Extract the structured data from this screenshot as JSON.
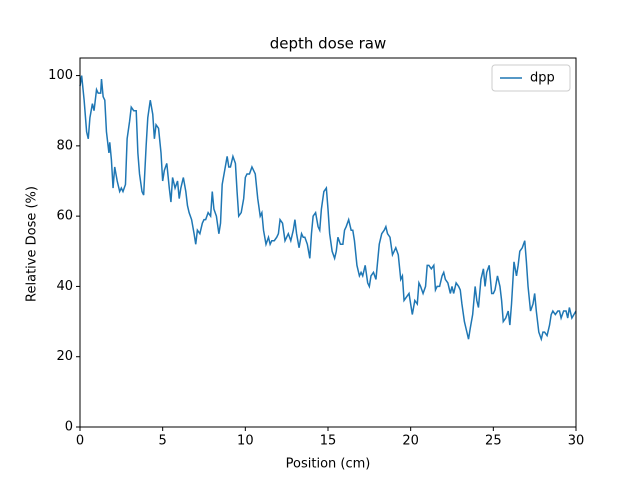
{
  "chart_data": {
    "type": "line",
    "title": "depth dose raw",
    "xlabel": "Position (cm)",
    "ylabel": "Relative Dose (%)",
    "xlim": [
      0,
      30
    ],
    "ylim": [
      0,
      105
    ],
    "xticks": [
      0,
      5,
      10,
      15,
      20,
      25,
      30
    ],
    "yticks": [
      0,
      20,
      40,
      60,
      80,
      100
    ],
    "legend": "upper right",
    "x": [
      0,
      0.1,
      0.25,
      0.4,
      0.5,
      0.6,
      0.75,
      0.85,
      1.0,
      1.1,
      1.25,
      1.3,
      1.4,
      1.5,
      1.6,
      1.75,
      1.8,
      1.9,
      2.0,
      2.1,
      2.25,
      2.4,
      2.5,
      2.6,
      2.75,
      2.85,
      3.0,
      3.1,
      3.25,
      3.4,
      3.5,
      3.6,
      3.75,
      3.85,
      4.0,
      4.1,
      4.25,
      4.4,
      4.5,
      4.6,
      4.75,
      4.9,
      5.0,
      5.1,
      5.25,
      5.4,
      5.5,
      5.6,
      5.75,
      5.9,
      6.0,
      6.1,
      6.25,
      6.4,
      6.5,
      6.6,
      6.75,
      6.9,
      7.0,
      7.1,
      7.25,
      7.4,
      7.5,
      7.6,
      7.75,
      7.9,
      8.0,
      8.1,
      8.25,
      8.4,
      8.5,
      8.6,
      8.75,
      8.9,
      9.0,
      9.1,
      9.25,
      9.4,
      9.5,
      9.6,
      9.75,
      9.9,
      10.0,
      10.1,
      10.25,
      10.4,
      10.5,
      10.6,
      10.75,
      10.9,
      11.0,
      11.1,
      11.25,
      11.4,
      11.5,
      11.6,
      11.75,
      11.9,
      12.0,
      12.1,
      12.25,
      12.4,
      12.5,
      12.6,
      12.75,
      12.9,
      13.0,
      13.1,
      13.25,
      13.4,
      13.5,
      13.6,
      13.75,
      13.9,
      14.0,
      14.1,
      14.25,
      14.4,
      14.5,
      14.6,
      14.75,
      14.9,
      15.0,
      15.1,
      15.25,
      15.4,
      15.5,
      15.6,
      15.75,
      15.9,
      16.0,
      16.1,
      16.25,
      16.4,
      16.5,
      16.6,
      16.75,
      16.9,
      17.0,
      17.1,
      17.25,
      17.4,
      17.5,
      17.6,
      17.75,
      17.9,
      18.0,
      18.1,
      18.25,
      18.4,
      18.5,
      18.6,
      18.75,
      18.9,
      19.0,
      19.1,
      19.25,
      19.4,
      19.5,
      19.6,
      19.75,
      19.9,
      20.0,
      20.1,
      20.25,
      20.4,
      20.5,
      20.6,
      20.75,
      20.9,
      21.0,
      21.1,
      21.25,
      21.4,
      21.5,
      21.6,
      21.75,
      21.9,
      22.0,
      22.1,
      22.25,
      22.4,
      22.5,
      22.6,
      22.75,
      22.9,
      23.0,
      23.1,
      23.25,
      23.4,
      23.5,
      23.6,
      23.75,
      23.9,
      24.0,
      24.1,
      24.25,
      24.4,
      24.5,
      24.6,
      24.75,
      24.9,
      25.0,
      25.1,
      25.25,
      25.4,
      25.5,
      25.6,
      25.75,
      25.9,
      26.0,
      26.1,
      26.25,
      26.4,
      26.5,
      26.6,
      26.75,
      26.9,
      27.0,
      27.1,
      27.25,
      27.4,
      27.5,
      27.6,
      27.75,
      27.9,
      28.0,
      28.1,
      28.25,
      28.4,
      28.5,
      28.6,
      28.75,
      28.9,
      29.0,
      29.1,
      29.25,
      29.4,
      29.5,
      29.6,
      29.75,
      30.0
    ],
    "series": [
      {
        "name": "dpp",
        "color": "#1f77b4",
        "values": [
          97,
          100,
          93,
          84,
          82,
          88,
          92,
          90,
          96,
          95,
          95,
          99,
          94,
          93,
          84,
          78,
          81,
          76,
          68,
          74,
          70,
          67,
          68,
          67,
          69,
          82,
          87,
          91,
          90,
          90,
          78,
          72,
          67,
          66,
          80,
          88,
          93,
          89,
          82,
          86,
          85,
          78,
          70,
          73,
          75,
          68,
          64,
          71,
          68,
          70,
          65,
          68,
          71,
          67,
          63,
          61,
          59,
          55,
          52,
          56,
          55,
          58,
          59,
          59,
          61,
          60,
          67,
          62,
          60,
          55,
          58,
          69,
          73,
          77,
          74,
          74,
          77,
          75,
          67,
          60,
          61,
          65,
          71,
          72,
          72,
          74,
          73,
          72,
          65,
          60,
          61,
          56,
          52,
          54,
          52,
          53,
          53,
          54,
          55,
          59,
          58,
          53,
          54,
          55,
          53,
          56,
          59,
          55,
          51,
          55,
          54,
          54,
          52,
          48,
          55,
          60,
          61,
          57,
          56,
          62,
          67,
          68,
          62,
          55,
          50,
          48,
          50,
          54,
          52,
          52,
          56,
          57,
          59,
          56,
          56,
          53,
          46,
          43,
          44,
          43,
          46,
          41,
          40,
          43,
          44,
          42,
          47,
          52,
          55,
          56,
          57,
          55,
          54,
          49,
          50,
          51,
          49,
          42,
          43,
          36,
          37,
          38,
          35,
          32,
          36,
          35,
          41,
          40,
          38,
          40,
          46,
          46,
          45,
          46,
          39,
          40,
          40,
          43,
          44,
          42,
          41,
          38,
          40,
          38,
          41,
          40,
          39,
          35,
          30,
          27,
          25,
          28,
          32,
          40,
          36,
          34,
          42,
          45,
          40,
          44,
          46,
          38,
          38,
          39,
          43,
          40,
          36,
          30,
          31,
          33,
          29,
          35,
          47,
          43,
          46,
          50,
          51,
          53,
          47,
          40,
          33,
          35,
          38,
          33,
          27,
          25,
          27,
          27,
          26,
          29,
          32,
          33,
          32,
          33,
          33,
          31,
          33,
          33,
          31,
          34,
          31,
          33
        ]
      }
    ]
  }
}
